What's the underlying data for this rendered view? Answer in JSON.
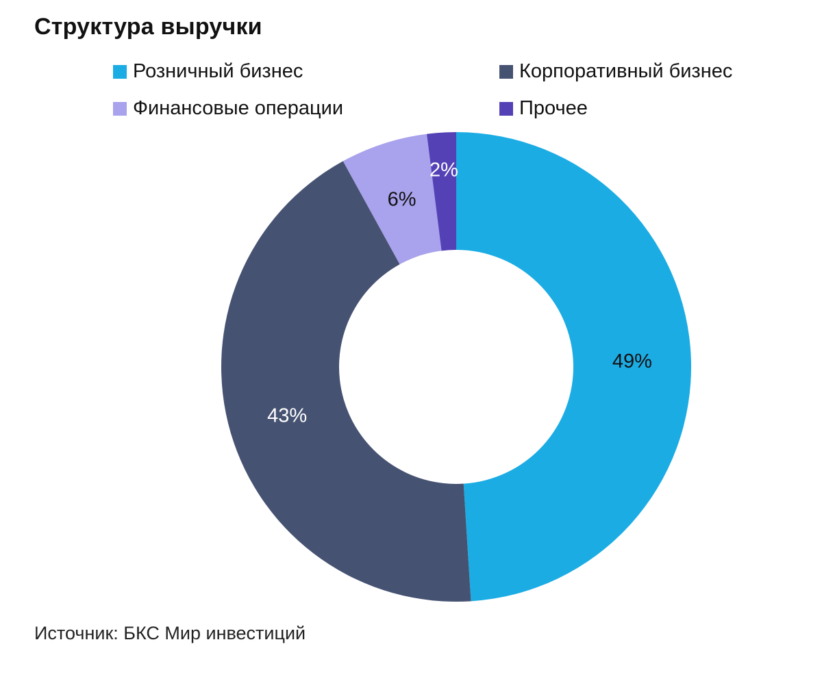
{
  "title": "Структура выручки",
  "source": "Источник: БКС Мир инвестиций",
  "chart_data": {
    "type": "pie",
    "donut": true,
    "title": "Структура выручки",
    "legend_position": "top",
    "categories": [
      "Розничный бизнес",
      "Корпоративный бизнес",
      "Финансовые операции",
      "Прочее"
    ],
    "values": [
      49,
      43,
      6,
      2
    ],
    "data_labels": [
      "49%",
      "43%",
      "6%",
      "2%"
    ],
    "colors": [
      "#1BACE4",
      "#465272",
      "#A9A2EC",
      "#5441B6"
    ],
    "label_colors": [
      "#111111",
      "#ffffff",
      "#111111",
      "#ffffff"
    ]
  }
}
